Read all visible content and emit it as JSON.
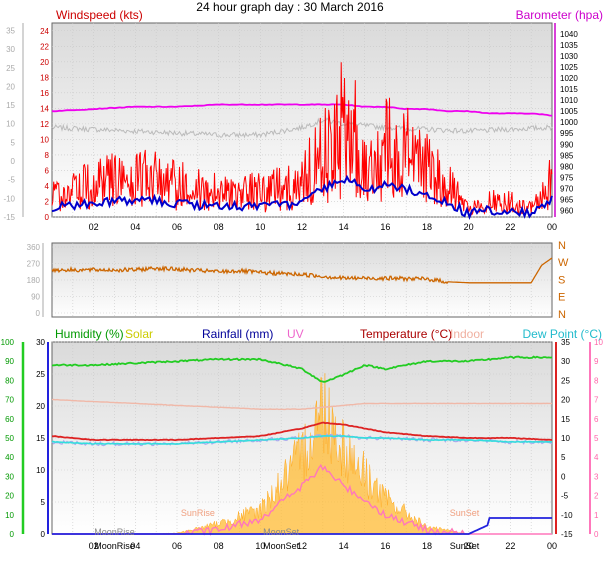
{
  "title": "24 hour graph day : 30 March 2016",
  "colors": {
    "wind": "#ff0000",
    "gust_line": "#0000cc",
    "barometer": "#ee00ee",
    "temperature": "#dd2222",
    "indoor": "#f0b8a8",
    "dewpoint": "#33dddd",
    "humidity": "#22cc22",
    "solar": "#ffbb33",
    "rainfall": "#2222dd",
    "uv": "#ff77bb",
    "direction": "#cc6600",
    "gray_series": "#bbbbbb"
  },
  "x_ticks": [
    "02",
    "04",
    "06",
    "08",
    "10",
    "12",
    "14",
    "16",
    "18",
    "20",
    "22",
    "00"
  ],
  "panel1": {
    "left_label": "Windspeed (kts)",
    "right_label": "Barometer (hpa)",
    "left_ticks_wind": [
      "24",
      "22",
      "20",
      "18",
      "16",
      "14",
      "12",
      "10",
      "8",
      "6",
      "4",
      "2",
      "0"
    ],
    "left_ticks_temp": [
      "35",
      "30",
      "25",
      "20",
      "15",
      "10",
      "5",
      "0",
      "-5",
      "-10",
      "-15"
    ],
    "right_ticks": [
      "1040",
      "1035",
      "1030",
      "1025",
      "1020",
      "1015",
      "1010",
      "1005",
      "1000",
      "995",
      "990",
      "985",
      "980",
      "975",
      "970",
      "965",
      "960"
    ]
  },
  "panel2": {
    "left_ticks": [
      "360",
      "270",
      "180",
      "90",
      "0"
    ],
    "right_labels": [
      "N",
      "W",
      "S",
      "E",
      "N"
    ]
  },
  "panel3": {
    "labels": {
      "humidity": "Humidity (%)",
      "solar": "Solar",
      "rainfall": "Rainfall (mm)",
      "uv": "UV",
      "temperature": "Temperature (°C)",
      "indoor": "Indoor",
      "dewpoint": "Dew Point (°C)"
    },
    "left_ticks": [
      "100",
      "90",
      "80",
      "70",
      "60",
      "50",
      "40",
      "30",
      "20",
      "10",
      "0"
    ],
    "rain_ticks": [
      "30",
      "25",
      "20",
      "15",
      "10",
      "5",
      "0"
    ],
    "temp_ticks": [
      "35",
      "30",
      "25",
      "20",
      "15",
      "10",
      "5",
      "0",
      "-5",
      "-10",
      "-15"
    ],
    "uv_ticks": [
      "10",
      "9",
      "8",
      "7",
      "6",
      "5",
      "4",
      "3",
      "2",
      "1",
      "0"
    ],
    "events": [
      {
        "label": "MoonRise",
        "hour": 3.0
      },
      {
        "label": "SunRise",
        "hour": 7.0
      },
      {
        "label": "MoonSet",
        "hour": 11.0
      },
      {
        "label": "SunSet",
        "hour": 19.8
      }
    ]
  },
  "chart_data": [
    {
      "type": "line",
      "panel": "wind_barometer",
      "x_label": "hour",
      "ylim_wind": [
        0,
        24
      ],
      "ylim_barometer": [
        960,
        1040
      ],
      "x": [
        0,
        2,
        4,
        6,
        8,
        10,
        12,
        13,
        14,
        15,
        16,
        17,
        18,
        19,
        20,
        21,
        22,
        23,
        24
      ],
      "series": [
        {
          "name": "Windspeed (kts)",
          "values": [
            3,
            4,
            5,
            4,
            3,
            3,
            4,
            8,
            11,
            8,
            9,
            8,
            6,
            4,
            1,
            2,
            2,
            1,
            5
          ]
        },
        {
          "name": "Barometer (hpa)",
          "values": [
            1005,
            1006,
            1007,
            1007,
            1008,
            1008,
            1008,
            1008,
            1008,
            1007,
            1007,
            1006,
            1006,
            1005,
            1005,
            1004,
            1004,
            1004,
            1003
          ]
        }
      ]
    },
    {
      "type": "line",
      "panel": "wind_direction",
      "ylim": [
        0,
        360
      ],
      "x": [
        0,
        4,
        5,
        8,
        9,
        10,
        12,
        14,
        16,
        18,
        19,
        20,
        22,
        23,
        23.5,
        24
      ],
      "values": [
        235,
        235,
        245,
        225,
        230,
        220,
        210,
        190,
        190,
        185,
        170,
        165,
        165,
        165,
        260,
        300
      ]
    },
    {
      "type": "line",
      "panel": "weather",
      "x": [
        0,
        2,
        4,
        6,
        8,
        10,
        12,
        13,
        14,
        15,
        16,
        18,
        20,
        22,
        24
      ],
      "series": [
        {
          "name": "Humidity (%)",
          "values": [
            88,
            88,
            89,
            90,
            91,
            91,
            86,
            79,
            83,
            88,
            86,
            90,
            90,
            92,
            92
          ]
        },
        {
          "name": "Temperature (°C)",
          "values": [
            10.5,
            9.5,
            9.5,
            9.5,
            10,
            10.5,
            12.5,
            14,
            13.5,
            12.5,
            11.5,
            10.5,
            10,
            10,
            9.5
          ]
        },
        {
          "name": "Indoor",
          "values": [
            20,
            19.5,
            19,
            18.5,
            18,
            17.5,
            17.5,
            18,
            18.5,
            19,
            19,
            19,
            19,
            19,
            19
          ]
        },
        {
          "name": "Dew Point (°C)",
          "values": [
            9,
            8.5,
            8.5,
            8.5,
            9,
            9.5,
            10,
            10.5,
            10.5,
            10,
            10,
            9.5,
            9.5,
            9,
            9
          ]
        },
        {
          "name": "Rainfall (mm)",
          "values": [
            0,
            0,
            0,
            0,
            0,
            0,
            0,
            0,
            0,
            0,
            0,
            0,
            1.5,
            2.5,
            2.5
          ]
        },
        {
          "name": "Solar",
          "values": [
            0,
            0,
            0,
            5,
            60,
            140,
            450,
            750,
            500,
            350,
            200,
            40,
            0,
            0,
            0
          ]
        },
        {
          "name": "UV",
          "values": [
            0,
            0,
            0,
            0,
            0.2,
            0.8,
            2.5,
            3.5,
            2.5,
            1.8,
            1,
            0.2,
            0,
            0,
            0
          ]
        }
      ]
    }
  ]
}
